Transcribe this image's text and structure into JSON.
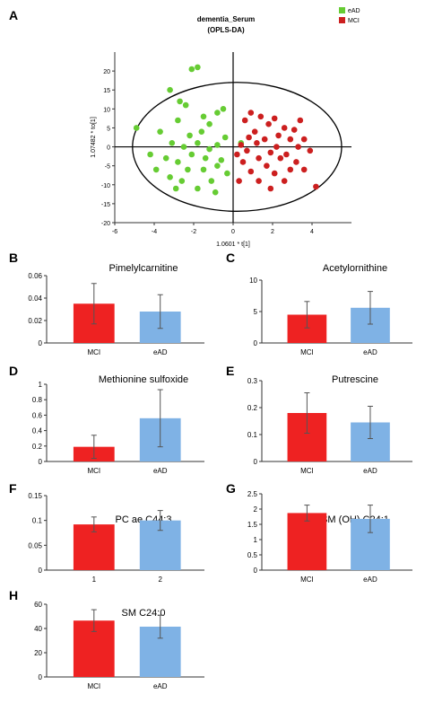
{
  "panel_letters": [
    "A",
    "B",
    "C",
    "D",
    "E",
    "F",
    "G",
    "H"
  ],
  "chart_data": [
    {
      "panel": "A",
      "type": "scatter",
      "title": "dementia_Serum",
      "subtitle": "(OPLS-DA)",
      "xlabel": "1.0601 * t[1]",
      "ylabel": "1.07482 * to[1]",
      "xlim": [
        -6,
        6
      ],
      "ylim": [
        -20,
        25
      ],
      "xticks": [
        -6,
        -4,
        -2,
        0,
        2,
        4
      ],
      "yticks": [
        -20,
        -15,
        -10,
        -5,
        0,
        5,
        10,
        15,
        20
      ],
      "legend": [
        "eAD",
        "MCI"
      ],
      "colors": {
        "eAD": "#66cc33",
        "MCI": "#cc1f1f"
      },
      "ellipse": {
        "cx": 0.2,
        "cy": 0,
        "rx": 5.3,
        "ry": 17
      },
      "series": [
        {
          "name": "eAD",
          "points": [
            [
              -1.8,
              21
            ],
            [
              -2.1,
              20.5
            ],
            [
              -3.2,
              15
            ],
            [
              -2.7,
              12
            ],
            [
              -2.4,
              11
            ],
            [
              -0.8,
              9
            ],
            [
              -0.5,
              10
            ],
            [
              -1.5,
              8
            ],
            [
              -2.8,
              7
            ],
            [
              -4.9,
              5
            ],
            [
              -1.2,
              6
            ],
            [
              -3.7,
              4
            ],
            [
              -2.2,
              3
            ],
            [
              -1.6,
              4
            ],
            [
              -0.4,
              2.5
            ],
            [
              -1.8,
              1
            ],
            [
              -3.1,
              1
            ],
            [
              -2.5,
              0
            ],
            [
              -0.8,
              0.5
            ],
            [
              -1.2,
              -0.6
            ],
            [
              -4.2,
              -2
            ],
            [
              -3.4,
              -3
            ],
            [
              -2.8,
              -4
            ],
            [
              -2.1,
              -2
            ],
            [
              -1.4,
              -3
            ],
            [
              -0.6,
              -3.5
            ],
            [
              -3.9,
              -6
            ],
            [
              -2.3,
              -6
            ],
            [
              -1.5,
              -6
            ],
            [
              -0.8,
              -5
            ],
            [
              -3.2,
              -8
            ],
            [
              -2.6,
              -9
            ],
            [
              -1.1,
              -9
            ],
            [
              -0.3,
              -7
            ],
            [
              -1.8,
              -11
            ],
            [
              -2.9,
              -11
            ],
            [
              -0.9,
              -12
            ],
            [
              0.4,
              1
            ]
          ]
        },
        {
          "name": "MCI",
          "points": [
            [
              0.9,
              9
            ],
            [
              1.4,
              8
            ],
            [
              2.1,
              7.5
            ],
            [
              3.4,
              7
            ],
            [
              0.6,
              7
            ],
            [
              1.8,
              6
            ],
            [
              2.6,
              5
            ],
            [
              3.1,
              4.5
            ],
            [
              1.1,
              4
            ],
            [
              2.3,
              3
            ],
            [
              0.8,
              2.5
            ],
            [
              1.6,
              2
            ],
            [
              2.9,
              2
            ],
            [
              3.6,
              2
            ],
            [
              0.4,
              0.5
            ],
            [
              1.2,
              1
            ],
            [
              2.2,
              0
            ],
            [
              3.3,
              0
            ],
            [
              3.9,
              -1
            ],
            [
              0.7,
              -1
            ],
            [
              1.9,
              -1.5
            ],
            [
              2.7,
              -2
            ],
            [
              0.2,
              -2
            ],
            [
              1.3,
              -3
            ],
            [
              2.4,
              -3
            ],
            [
              3.2,
              -4
            ],
            [
              0.5,
              -4
            ],
            [
              1.7,
              -5
            ],
            [
              2.9,
              -6
            ],
            [
              0.9,
              -6.5
            ],
            [
              2.1,
              -7
            ],
            [
              3.6,
              -6
            ],
            [
              1.3,
              -9
            ],
            [
              2.6,
              -9
            ],
            [
              0.3,
              -9
            ],
            [
              4.2,
              -10.5
            ],
            [
              1.9,
              -11
            ]
          ]
        }
      ]
    },
    {
      "panel": "B",
      "type": "bar",
      "title": "Pimelylcarnitine",
      "categories": [
        "MCI",
        "eAD"
      ],
      "values": [
        0.035,
        0.028
      ],
      "errors": [
        0.018,
        0.015
      ],
      "ylim": [
        0,
        0.06
      ],
      "yticks": [
        "0",
        "0.02",
        "0.04",
        "0.06"
      ]
    },
    {
      "panel": "C",
      "type": "bar",
      "title": "Acetylornithine",
      "categories": [
        "MCI",
        "eAD"
      ],
      "values": [
        4.5,
        5.6
      ],
      "errors": [
        2.1,
        2.6
      ],
      "ylim": [
        0,
        10
      ],
      "yticks": [
        "0",
        "5",
        "10"
      ]
    },
    {
      "panel": "D",
      "type": "bar",
      "title": "Methionine sulfoxide",
      "categories": [
        "MCI",
        "eAD"
      ],
      "values": [
        0.19,
        0.56
      ],
      "errors": [
        0.15,
        0.37
      ],
      "ylim": [
        0,
        1
      ],
      "yticks": [
        "0",
        "0.2",
        "0.4",
        "0.6",
        "0.8",
        "1"
      ]
    },
    {
      "panel": "E",
      "type": "bar",
      "title": "Putrescine",
      "categories": [
        "MCI",
        "eAD"
      ],
      "values": [
        0.18,
        0.145
      ],
      "errors": [
        0.075,
        0.06
      ],
      "ylim": [
        0,
        0.3
      ],
      "yticks": [
        "0",
        "0.1",
        "0.2",
        "0.3"
      ]
    },
    {
      "panel": "F",
      "type": "bar",
      "title": "PC ae C44:3",
      "categories": [
        "1",
        "2"
      ],
      "values": [
        0.092,
        0.1
      ],
      "errors": [
        0.015,
        0.02
      ],
      "ylim": [
        0,
        0.15
      ],
      "yticks": [
        "0",
        "0.05",
        "0.1",
        "0.15"
      ]
    },
    {
      "panel": "G",
      "type": "bar",
      "title": "SM (OH) C24:1",
      "categories": [
        "MCI",
        "eAD"
      ],
      "values": [
        1.87,
        1.68
      ],
      "errors": [
        0.26,
        0.45
      ],
      "ylim": [
        0,
        2.5
      ],
      "yticks": [
        "0",
        "0.5",
        "1",
        "1.5",
        "2",
        "2.5"
      ]
    },
    {
      "panel": "H",
      "type": "bar",
      "title": "SM C24:0",
      "categories": [
        "MCI",
        "eAD"
      ],
      "values": [
        46.5,
        41.5
      ],
      "errors": [
        9,
        9.5
      ],
      "ylim": [
        0,
        60
      ],
      "yticks": [
        "0",
        "20",
        "40",
        "60"
      ]
    }
  ],
  "colors": {
    "mci_bar": "#ee2222",
    "ead_bar": "#7fb2e5",
    "error": "#555555",
    "axis": "#333333"
  }
}
